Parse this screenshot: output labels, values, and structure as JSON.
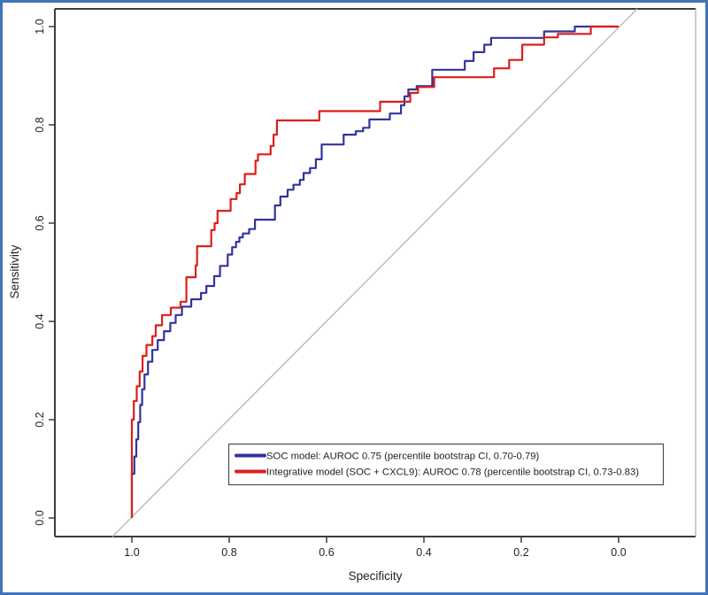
{
  "figure": {
    "border_color": "#4273B8",
    "axis_color": "#3D3D3D",
    "diagonal_color": "#C0B9B1",
    "background": "#FFFFFF"
  },
  "chart_data": {
    "type": "line",
    "subtype": "roc-step-curves",
    "title": "",
    "xlabel": "Specificity",
    "ylabel": "Sensitivity",
    "x_axis_reversed": true,
    "xlim": [
      1.0,
      0.0
    ],
    "ylim": [
      0.0,
      1.0
    ],
    "grid": false,
    "x_ticks": [
      "1.0",
      "0.8",
      "0.6",
      "0.4",
      "0.2",
      "0.0"
    ],
    "y_ticks": [
      "0.0",
      "0.2",
      "0.4",
      "0.6",
      "0.8",
      "1.0"
    ],
    "diagonal_reference_line": true,
    "legend": {
      "position": "bottom-right-inside",
      "entries": [
        {
          "label": "SOC model: AUROC 0.75 (percentile bootstrap CI, 0.70-0.79)",
          "color": "#33339E"
        },
        {
          "label": "Integrative model (SOC + CXCL9): AUROC 0.78 (percentile bootstrap CI, 0.73-0.83)",
          "color": "#DC1F1A"
        }
      ]
    },
    "series": [
      {
        "name": "SOC model",
        "auroc": 0.75,
        "ci": "0.70-0.79",
        "color": "#33339E",
        "points_spec_sens": [
          [
            1.0,
            0.0
          ],
          [
            1.0,
            0.055
          ],
          [
            0.995,
            0.09
          ],
          [
            0.991,
            0.125
          ],
          [
            0.987,
            0.16
          ],
          [
            0.983,
            0.195
          ],
          [
            0.979,
            0.23
          ],
          [
            0.974,
            0.262
          ],
          [
            0.967,
            0.292
          ],
          [
            0.958,
            0.318
          ],
          [
            0.947,
            0.342
          ],
          [
            0.934,
            0.362
          ],
          [
            0.921,
            0.38
          ],
          [
            0.91,
            0.397
          ],
          [
            0.897,
            0.413
          ],
          [
            0.878,
            0.43
          ],
          [
            0.858,
            0.445
          ],
          [
            0.847,
            0.458
          ],
          [
            0.831,
            0.472
          ],
          [
            0.819,
            0.492
          ],
          [
            0.803,
            0.513
          ],
          [
            0.794,
            0.536
          ],
          [
            0.786,
            0.551
          ],
          [
            0.779,
            0.562
          ],
          [
            0.772,
            0.571
          ],
          [
            0.759,
            0.579
          ],
          [
            0.747,
            0.588
          ],
          [
            0.706,
            0.607
          ],
          [
            0.695,
            0.636
          ],
          [
            0.68,
            0.654
          ],
          [
            0.668,
            0.668
          ],
          [
            0.655,
            0.678
          ],
          [
            0.647,
            0.688
          ],
          [
            0.634,
            0.702
          ],
          [
            0.622,
            0.712
          ],
          [
            0.61,
            0.73
          ],
          [
            0.565,
            0.76
          ],
          [
            0.54,
            0.78
          ],
          [
            0.525,
            0.787
          ],
          [
            0.512,
            0.794
          ],
          [
            0.47,
            0.811
          ],
          [
            0.447,
            0.823
          ],
          [
            0.44,
            0.84
          ],
          [
            0.432,
            0.858
          ],
          [
            0.415,
            0.872
          ],
          [
            0.383,
            0.879
          ],
          [
            0.316,
            0.912
          ],
          [
            0.298,
            0.93
          ],
          [
            0.276,
            0.948
          ],
          [
            0.262,
            0.963
          ],
          [
            0.153,
            0.977
          ],
          [
            0.09,
            0.99
          ],
          [
            0.075,
            1.0
          ],
          [
            0.0,
            1.0
          ]
        ]
      },
      {
        "name": "Integrative model (SOC + CXCL9)",
        "auroc": 0.78,
        "ci": "0.73-0.83",
        "color": "#DC1F1A",
        "points_spec_sens": [
          [
            1.0,
            0.0
          ],
          [
            1.0,
            0.16
          ],
          [
            0.996,
            0.2
          ],
          [
            0.99,
            0.238
          ],
          [
            0.984,
            0.268
          ],
          [
            0.978,
            0.298
          ],
          [
            0.97,
            0.33
          ],
          [
            0.958,
            0.352
          ],
          [
            0.951,
            0.37
          ],
          [
            0.938,
            0.392
          ],
          [
            0.92,
            0.413
          ],
          [
            0.9,
            0.428
          ],
          [
            0.888,
            0.44
          ],
          [
            0.869,
            0.49
          ],
          [
            0.866,
            0.514
          ],
          [
            0.837,
            0.553
          ],
          [
            0.83,
            0.586
          ],
          [
            0.824,
            0.6
          ],
          [
            0.797,
            0.625
          ],
          [
            0.785,
            0.649
          ],
          [
            0.778,
            0.661
          ],
          [
            0.768,
            0.679
          ],
          [
            0.746,
            0.7
          ],
          [
            0.741,
            0.727
          ],
          [
            0.715,
            0.74
          ],
          [
            0.709,
            0.757
          ],
          [
            0.702,
            0.78
          ],
          [
            0.615,
            0.809
          ],
          [
            0.49,
            0.828
          ],
          [
            0.428,
            0.847
          ],
          [
            0.412,
            0.865
          ],
          [
            0.379,
            0.877
          ],
          [
            0.256,
            0.897
          ],
          [
            0.225,
            0.915
          ],
          [
            0.198,
            0.932
          ],
          [
            0.153,
            0.963
          ],
          [
            0.125,
            0.978
          ],
          [
            0.057,
            0.985
          ],
          [
            0.0,
            1.0
          ]
        ]
      }
    ]
  }
}
